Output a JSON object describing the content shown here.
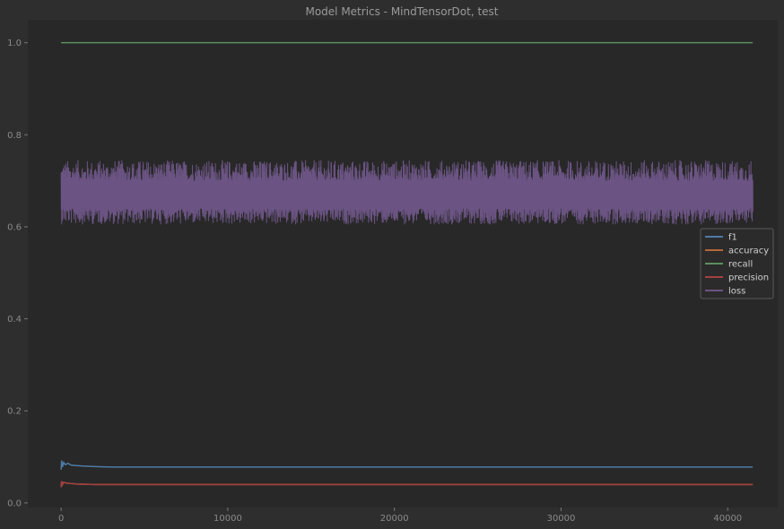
{
  "chart_data": {
    "type": "line",
    "title": "Model Metrics - MindTensorDot, test",
    "xlabel": "",
    "ylabel": "",
    "xlim": [
      -2000,
      43000
    ],
    "ylim": [
      -0.01,
      1.05
    ],
    "x_ticks": [
      0,
      10000,
      20000,
      30000,
      40000
    ],
    "x_tick_labels": [
      "0",
      "10000",
      "20000",
      "30000",
      "40000"
    ],
    "y_ticks": [
      0.0,
      0.2,
      0.4,
      0.6,
      0.8,
      1.0
    ],
    "y_tick_labels": [
      "0.0",
      "0.2",
      "0.4",
      "0.6",
      "0.8",
      "1.0"
    ],
    "grid": false,
    "legend_position": "center-right",
    "x_max": 41500,
    "series": [
      {
        "name": "f1",
        "color": "#4f7aa5",
        "x": [
          0,
          30,
          80,
          150,
          250,
          400,
          600,
          900,
          1300,
          2000,
          3000,
          5000,
          10000,
          20000,
          30000,
          41500
        ],
        "y": [
          0.072,
          0.092,
          0.078,
          0.088,
          0.083,
          0.086,
          0.082,
          0.081,
          0.08,
          0.079,
          0.078,
          0.078,
          0.078,
          0.078,
          0.078,
          0.078
        ]
      },
      {
        "name": "accuracy",
        "color": "#b3683a",
        "x": [
          0,
          30,
          80,
          150,
          300,
          600,
          1000,
          2000,
          5000,
          20000,
          41500
        ],
        "y": [
          0.034,
          0.047,
          0.04,
          0.045,
          0.043,
          0.042,
          0.041,
          0.04,
          0.04,
          0.04,
          0.04
        ]
      },
      {
        "name": "recall",
        "color": "#5d8f5f",
        "x": [
          0,
          41500
        ],
        "y": [
          1.0,
          1.0
        ]
      },
      {
        "name": "precision",
        "color": "#a34040",
        "x": [
          0,
          30,
          80,
          150,
          300,
          600,
          1000,
          2000,
          5000,
          20000,
          41500
        ],
        "y": [
          0.034,
          0.047,
          0.04,
          0.045,
          0.043,
          0.042,
          0.041,
          0.04,
          0.04,
          0.04,
          0.04
        ]
      },
      {
        "name": "loss",
        "color": "#6b5483",
        "x_range": [
          0,
          41500
        ],
        "mean": 0.667,
        "low_range": [
          0.605,
          0.64
        ],
        "high_range": [
          0.7,
          0.745
        ]
      }
    ]
  }
}
